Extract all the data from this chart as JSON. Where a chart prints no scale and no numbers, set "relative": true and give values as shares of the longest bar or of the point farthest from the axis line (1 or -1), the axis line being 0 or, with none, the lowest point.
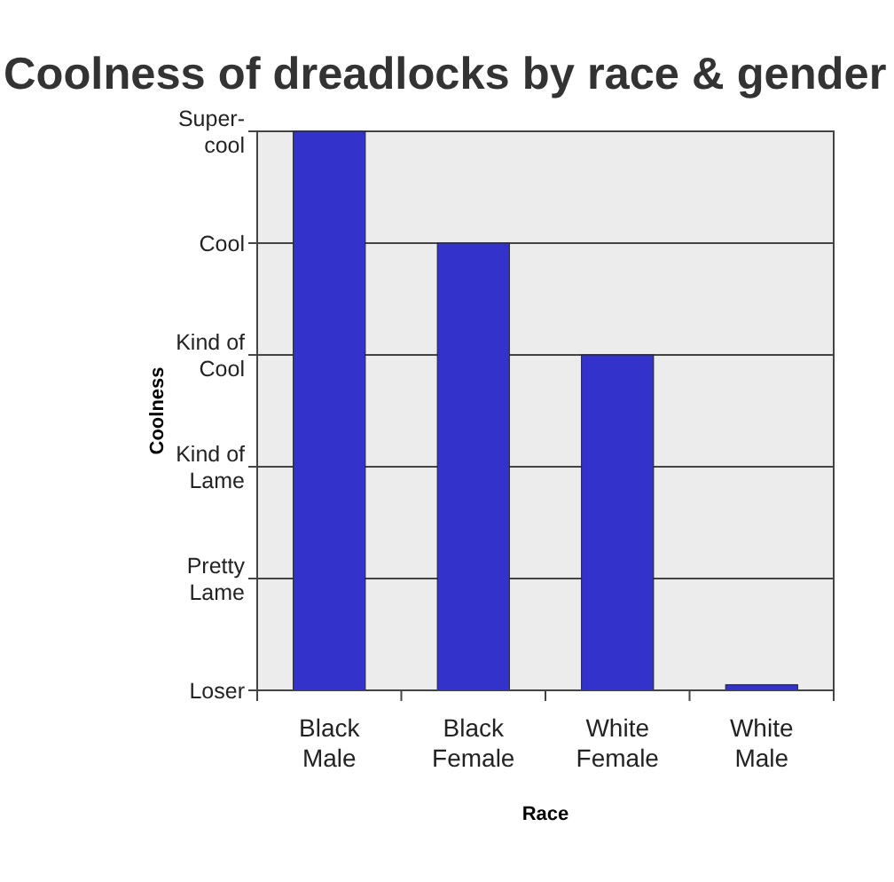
{
  "chart_data": {
    "type": "bar",
    "title": "Coolness of dreadlocks by race & gender",
    "xlabel": "Race",
    "ylabel": "Coolness",
    "categories": [
      "Black Male",
      "Black Female",
      "White Female",
      "White Male"
    ],
    "values": [
      1,
      0.8,
      0.6,
      0.01
    ],
    "color": "#3333cc",
    "relative": true,
    "annotations": [
      "Loser",
      "Pretty Lame",
      "Kind of Lame",
      "Kind of Cool",
      "Cool",
      "Super-cool"
    ],
    "grid": "y"
  }
}
